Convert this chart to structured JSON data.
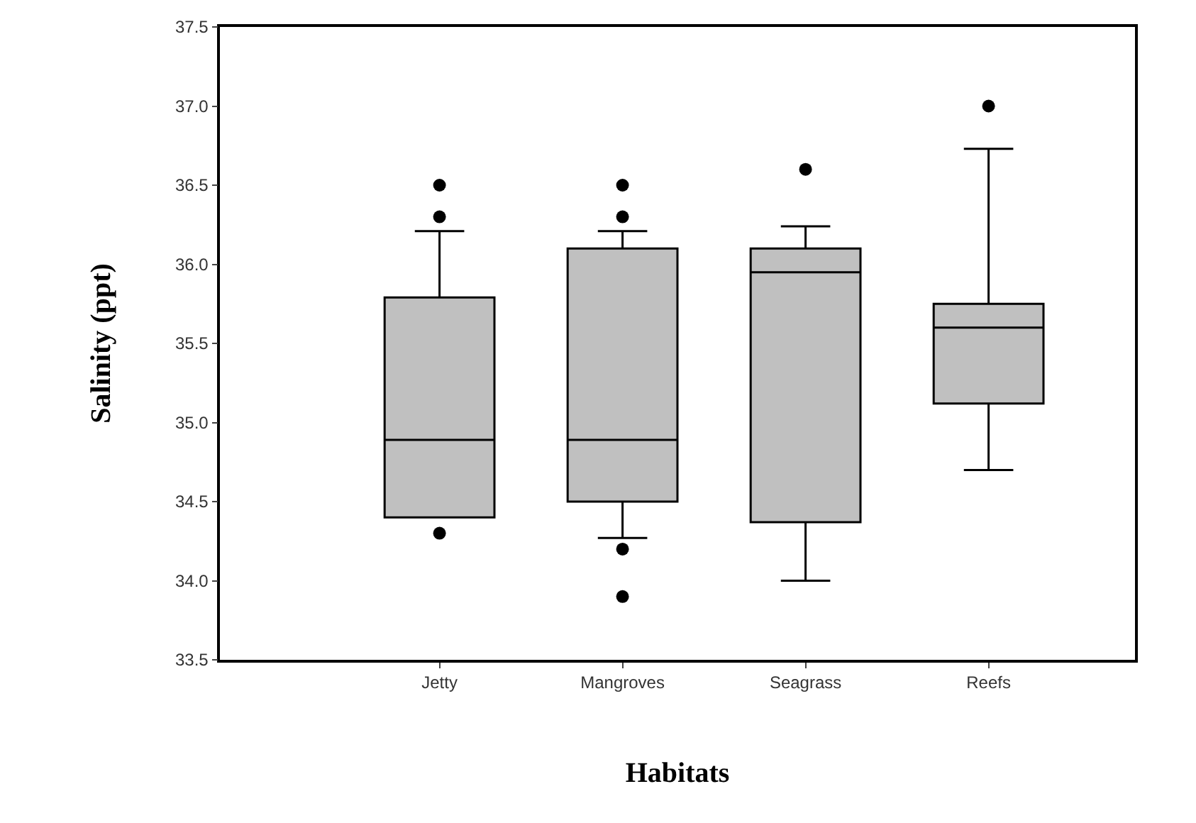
{
  "chart_data": {
    "type": "box",
    "xlabel": "Habitats",
    "ylabel": "Salinity (ppt)",
    "categories": [
      "Jetty",
      "Mangroves",
      "Seagrass",
      "Reefs"
    ],
    "boxes": [
      {
        "low": 34.4,
        "q1": 34.4,
        "median": 34.89,
        "q3": 35.79,
        "high": 36.21,
        "outliers": [
          36.5,
          36.3,
          34.3
        ]
      },
      {
        "low": 34.27,
        "q1": 34.5,
        "median": 34.89,
        "q3": 36.1,
        "high": 36.21,
        "outliers": [
          36.5,
          36.3,
          34.2,
          33.9
        ]
      },
      {
        "low": 34.0,
        "q1": 34.37,
        "median": 35.95,
        "q3": 36.1,
        "high": 36.24,
        "outliers": [
          36.6
        ]
      },
      {
        "low": 34.7,
        "q1": 35.12,
        "median": 35.6,
        "q3": 35.75,
        "high": 36.73,
        "outliers": [
          37.0
        ]
      }
    ],
    "color": "#c0c0c0",
    "ylim": [
      33.5,
      37.5
    ],
    "yticks": [
      33.5,
      {
        "value": 34,
        "label": "34.0"
      },
      34.5,
      {
        "value": 35,
        "label": "35.0"
      },
      35.5,
      {
        "value": 36,
        "label": "36.0"
      },
      36.5,
      {
        "value": 37,
        "label": "37.0"
      },
      37.5
    ],
    "marker": "circle"
  }
}
